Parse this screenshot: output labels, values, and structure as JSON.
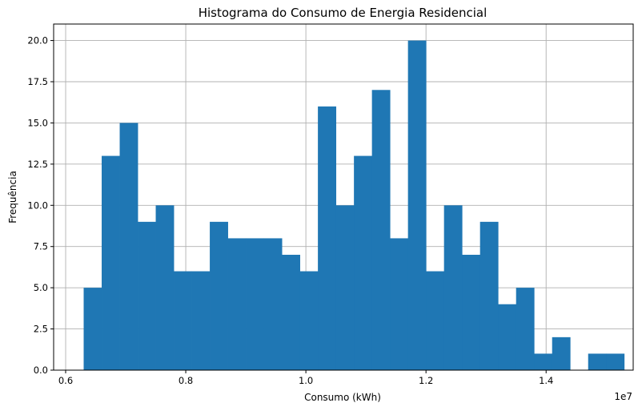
{
  "chart_data": {
    "type": "histogram",
    "title": "Histograma do Consumo de Energia Residencial",
    "xlabel": "Consumo (kWh)",
    "ylabel": "Frequência",
    "x_offset_label": "1e7",
    "xlim": [
      0.58,
      1.545
    ],
    "ylim": [
      0,
      21
    ],
    "grid": true,
    "color": "#1f77b4",
    "x_ticks": [
      0.6,
      0.8,
      1.0,
      1.2,
      1.4
    ],
    "x_tick_labels": [
      "0.6",
      "0.8",
      "1.0",
      "1.2",
      "1.4"
    ],
    "y_ticks": [
      0,
      2.5,
      5,
      7.5,
      10,
      12.5,
      15,
      17.5,
      20
    ],
    "y_tick_labels": [
      "0.0",
      "2.5",
      "5.0",
      "7.5",
      "10.0",
      "12.5",
      "15.0",
      "17.5",
      "20.0"
    ],
    "bin_start": 0.63,
    "bin_width": 0.03,
    "counts": [
      5,
      13,
      15,
      9,
      10,
      6,
      6,
      9,
      8,
      8,
      8,
      7,
      6,
      16,
      10,
      13,
      17,
      8,
      20,
      6,
      10,
      7,
      9,
      4,
      5,
      1,
      2,
      0,
      1,
      1
    ]
  }
}
